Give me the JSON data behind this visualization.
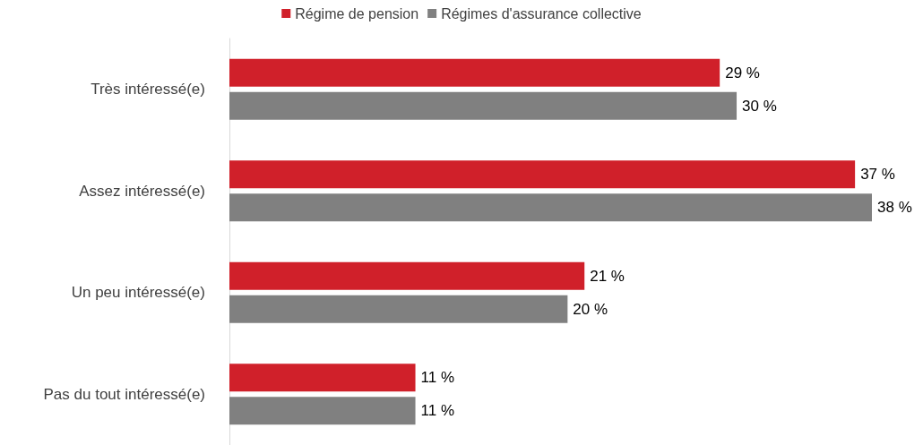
{
  "chart_data": {
    "type": "bar",
    "orientation": "horizontal",
    "categories": [
      "Très intéressé(e)",
      "Assez intéressé(e)",
      "Un peu intéressé(e)",
      "Pas du tout intéressé(e)"
    ],
    "series": [
      {
        "name": "Régime de pension",
        "color": "#d0202a",
        "values": [
          29,
          37,
          21,
          11
        ],
        "value_labels": [
          "29 %",
          "37 %",
          "21 %",
          "11 %"
        ]
      },
      {
        "name": "Régimes d'assurance collective",
        "color": "#808080",
        "values": [
          30,
          38,
          20,
          11
        ],
        "value_labels": [
          "30 %",
          "38 %",
          "20 %",
          "11 %"
        ]
      }
    ],
    "legend": "top"
  }
}
